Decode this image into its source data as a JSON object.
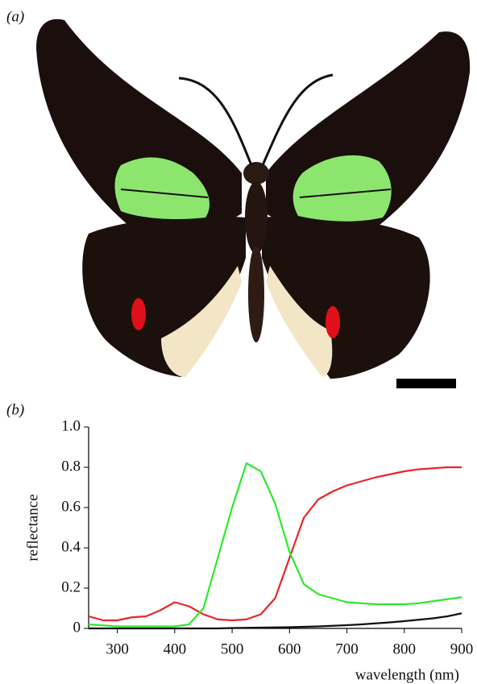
{
  "panels": {
    "a": "(a)",
    "b": "(b)"
  },
  "chart_data": {
    "type": "line",
    "xlabel": "wavelength (nm)",
    "ylabel": "reflectance",
    "x": [
      250,
      275,
      300,
      325,
      350,
      375,
      400,
      425,
      450,
      475,
      500,
      525,
      550,
      575,
      600,
      625,
      650,
      675,
      700,
      725,
      750,
      775,
      800,
      825,
      850,
      875,
      900
    ],
    "series": [
      {
        "color": "#e8262a",
        "values": [
          0.06,
          0.04,
          0.04,
          0.055,
          0.06,
          0.09,
          0.13,
          0.11,
          0.07,
          0.045,
          0.04,
          0.045,
          0.07,
          0.15,
          0.35,
          0.55,
          0.64,
          0.68,
          0.71,
          0.73,
          0.75,
          0.765,
          0.78,
          0.79,
          0.795,
          0.8,
          0.8
        ]
      },
      {
        "color": "#2ee82e",
        "values": [
          0.02,
          0.015,
          0.01,
          0.01,
          0.01,
          0.01,
          0.01,
          0.02,
          0.1,
          0.35,
          0.6,
          0.82,
          0.78,
          0.62,
          0.38,
          0.22,
          0.17,
          0.15,
          0.13,
          0.125,
          0.12,
          0.12,
          0.12,
          0.125,
          0.135,
          0.145,
          0.155
        ]
      },
      {
        "color": "#111111",
        "values": [
          0,
          0,
          0,
          0,
          0,
          0,
          0,
          0,
          0,
          0,
          0.002,
          0.003,
          0.004,
          0.005,
          0.006,
          0.008,
          0.01,
          0.013,
          0.016,
          0.02,
          0.025,
          0.03,
          0.036,
          0.043,
          0.05,
          0.06,
          0.075
        ]
      }
    ],
    "xlim": [
      250,
      900
    ],
    "xticks": [
      300,
      400,
      500,
      600,
      700,
      800,
      900
    ],
    "ylim": [
      0,
      1
    ],
    "yticks": [
      0,
      0.2,
      0.4,
      0.6,
      0.8,
      {
        "value": 1,
        "label": "1.0"
      }
    ],
    "grid": false
  }
}
